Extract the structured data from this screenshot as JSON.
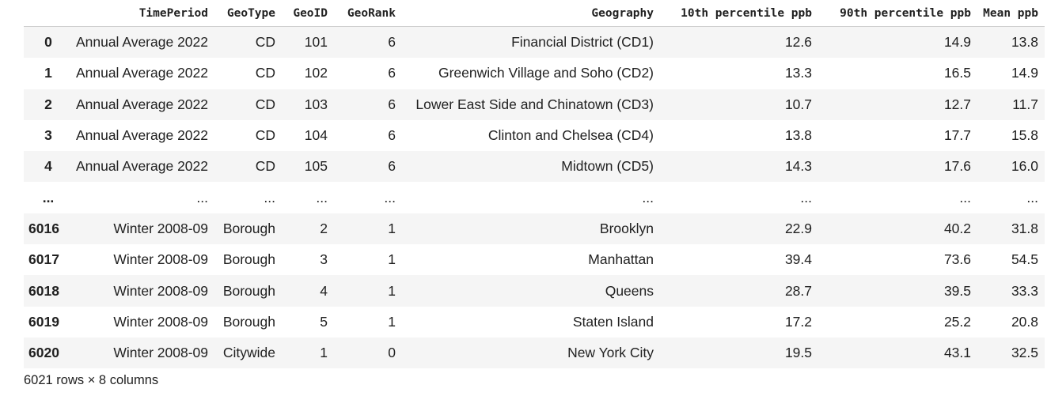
{
  "table": {
    "columns": [
      "TimePeriod",
      "GeoType",
      "GeoID",
      "GeoRank",
      "Geography",
      "10th percentile ppb",
      "90th percentile ppb",
      "Mean ppb"
    ],
    "rows": [
      {
        "index": "0",
        "cells": [
          "Annual Average 2022",
          "CD",
          "101",
          "6",
          "Financial District (CD1)",
          "12.6",
          "14.9",
          "13.8"
        ]
      },
      {
        "index": "1",
        "cells": [
          "Annual Average 2022",
          "CD",
          "102",
          "6",
          "Greenwich Village and Soho (CD2)",
          "13.3",
          "16.5",
          "14.9"
        ]
      },
      {
        "index": "2",
        "cells": [
          "Annual Average 2022",
          "CD",
          "103",
          "6",
          "Lower East Side and Chinatown (CD3)",
          "10.7",
          "12.7",
          "11.7"
        ]
      },
      {
        "index": "3",
        "cells": [
          "Annual Average 2022",
          "CD",
          "104",
          "6",
          "Clinton and Chelsea (CD4)",
          "13.8",
          "17.7",
          "15.8"
        ]
      },
      {
        "index": "4",
        "cells": [
          "Annual Average 2022",
          "CD",
          "105",
          "6",
          "Midtown (CD5)",
          "14.3",
          "17.6",
          "16.0"
        ]
      },
      {
        "index": "...",
        "cells": [
          "...",
          "...",
          "...",
          "...",
          "...",
          "...",
          "...",
          "..."
        ]
      },
      {
        "index": "6016",
        "cells": [
          "Winter 2008-09",
          "Borough",
          "2",
          "1",
          "Brooklyn",
          "22.9",
          "40.2",
          "31.8"
        ]
      },
      {
        "index": "6017",
        "cells": [
          "Winter 2008-09",
          "Borough",
          "3",
          "1",
          "Manhattan",
          "39.4",
          "73.6",
          "54.5"
        ]
      },
      {
        "index": "6018",
        "cells": [
          "Winter 2008-09",
          "Borough",
          "4",
          "1",
          "Queens",
          "28.7",
          "39.5",
          "33.3"
        ]
      },
      {
        "index": "6019",
        "cells": [
          "Winter 2008-09",
          "Borough",
          "5",
          "1",
          "Staten Island",
          "17.2",
          "25.2",
          "20.8"
        ]
      },
      {
        "index": "6020",
        "cells": [
          "Winter 2008-09",
          "Citywide",
          "1",
          "0",
          "New York City",
          "19.5",
          "43.1",
          "32.5"
        ]
      }
    ]
  },
  "footer": {
    "shape_text": "6021 rows × 8 columns"
  }
}
